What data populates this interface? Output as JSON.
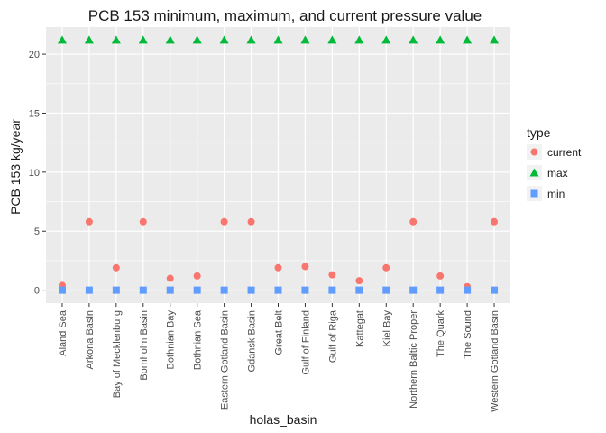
{
  "chart_data": {
    "type": "scatter",
    "title": "PCB 153 minimum, maximum, and current pressure value",
    "xlabel": "holas_basin",
    "ylabel": "PCB 153 kg/year",
    "ylim": [
      -1.1,
      22.3
    ],
    "yticks": [
      0,
      5,
      10,
      15,
      20
    ],
    "grid": true,
    "legend_position": "right",
    "legend_title": "type",
    "categories": [
      "Aland Sea",
      "Arkona Basin",
      "Bay of Mecklenburg",
      "Bornholm Basin",
      "Bothnian Bay",
      "Bothnian Sea",
      "Eastern Gotland Basin",
      "Gdansk Basin",
      "Great Belt",
      "Gulf of Finland",
      "Gulf of Riga",
      "Kattegat",
      "Kiel Bay",
      "Northern Baltic Proper",
      "The Quark",
      "The Sound",
      "Western Gotland Basin"
    ],
    "series": [
      {
        "name": "current",
        "shape": "circle",
        "color": "#F8766D",
        "values": [
          0.4,
          5.8,
          1.9,
          5.8,
          1.0,
          1.2,
          5.8,
          5.8,
          1.9,
          2.0,
          1.3,
          0.8,
          1.9,
          5.8,
          1.2,
          0.3,
          5.8
        ]
      },
      {
        "name": "max",
        "shape": "triangle",
        "color": "#00BA38",
        "values": [
          21.2,
          21.2,
          21.2,
          21.2,
          21.2,
          21.2,
          21.2,
          21.2,
          21.2,
          21.2,
          21.2,
          21.2,
          21.2,
          21.2,
          21.2,
          21.2,
          21.2
        ]
      },
      {
        "name": "min",
        "shape": "square",
        "color": "#619CFF",
        "values": [
          0,
          0,
          0,
          0,
          0,
          0,
          0,
          0,
          0,
          0,
          0,
          0,
          0,
          0,
          0,
          0,
          0
        ]
      }
    ]
  }
}
